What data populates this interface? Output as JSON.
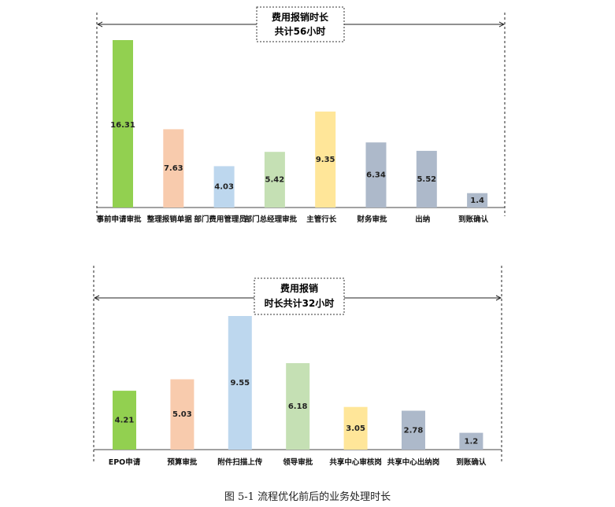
{
  "chart_data": [
    {
      "type": "bar",
      "title": "费用报销时长",
      "subtitle": "共计56小时",
      "categories": [
        "事前申请审批",
        "整理报销单据",
        "部门费用管理员",
        "部门总经理审批",
        "主管行长",
        "财务审批",
        "出纳",
        "到账确认"
      ],
      "values": [
        16.31,
        7.63,
        4.03,
        5.42,
        9.35,
        6.34,
        5.52,
        1.4
      ],
      "value_labels": [
        "16.31",
        "7.63",
        "4.03",
        "5.42",
        "9.35",
        "6.34",
        "5.52",
        "1.4"
      ],
      "colors": [
        "#92d050",
        "#f8cbad",
        "#bdd7ee",
        "#c5e0b4",
        "#ffe699",
        "#adb9ca",
        "#adb9ca",
        "#adb9ca"
      ],
      "ylim": [
        0,
        16.31
      ],
      "grid": false,
      "legend": "none"
    },
    {
      "type": "bar",
      "title": "费用报销",
      "subtitle": "时长共计32小时",
      "categories": [
        "EPO申请",
        "预算审批",
        "附件扫描上传",
        "领导审批",
        "共享中心审核岗",
        "共享中心出纳岗",
        "到账确认"
      ],
      "values": [
        4.21,
        5.03,
        9.55,
        6.18,
        3.05,
        2.78,
        1.2
      ],
      "value_labels": [
        "4.21",
        "5.03",
        "9.55",
        "6.18",
        "3.05",
        "2.78",
        "1.2"
      ],
      "colors": [
        "#92d050",
        "#f8cbad",
        "#bdd7ee",
        "#c5e0b4",
        "#ffe699",
        "#adb9ca",
        "#adb9ca"
      ],
      "ylim": [
        0,
        9.55
      ],
      "grid": false,
      "legend": "none"
    }
  ],
  "caption": "图 5-1 流程优化前后的业务处理时长"
}
